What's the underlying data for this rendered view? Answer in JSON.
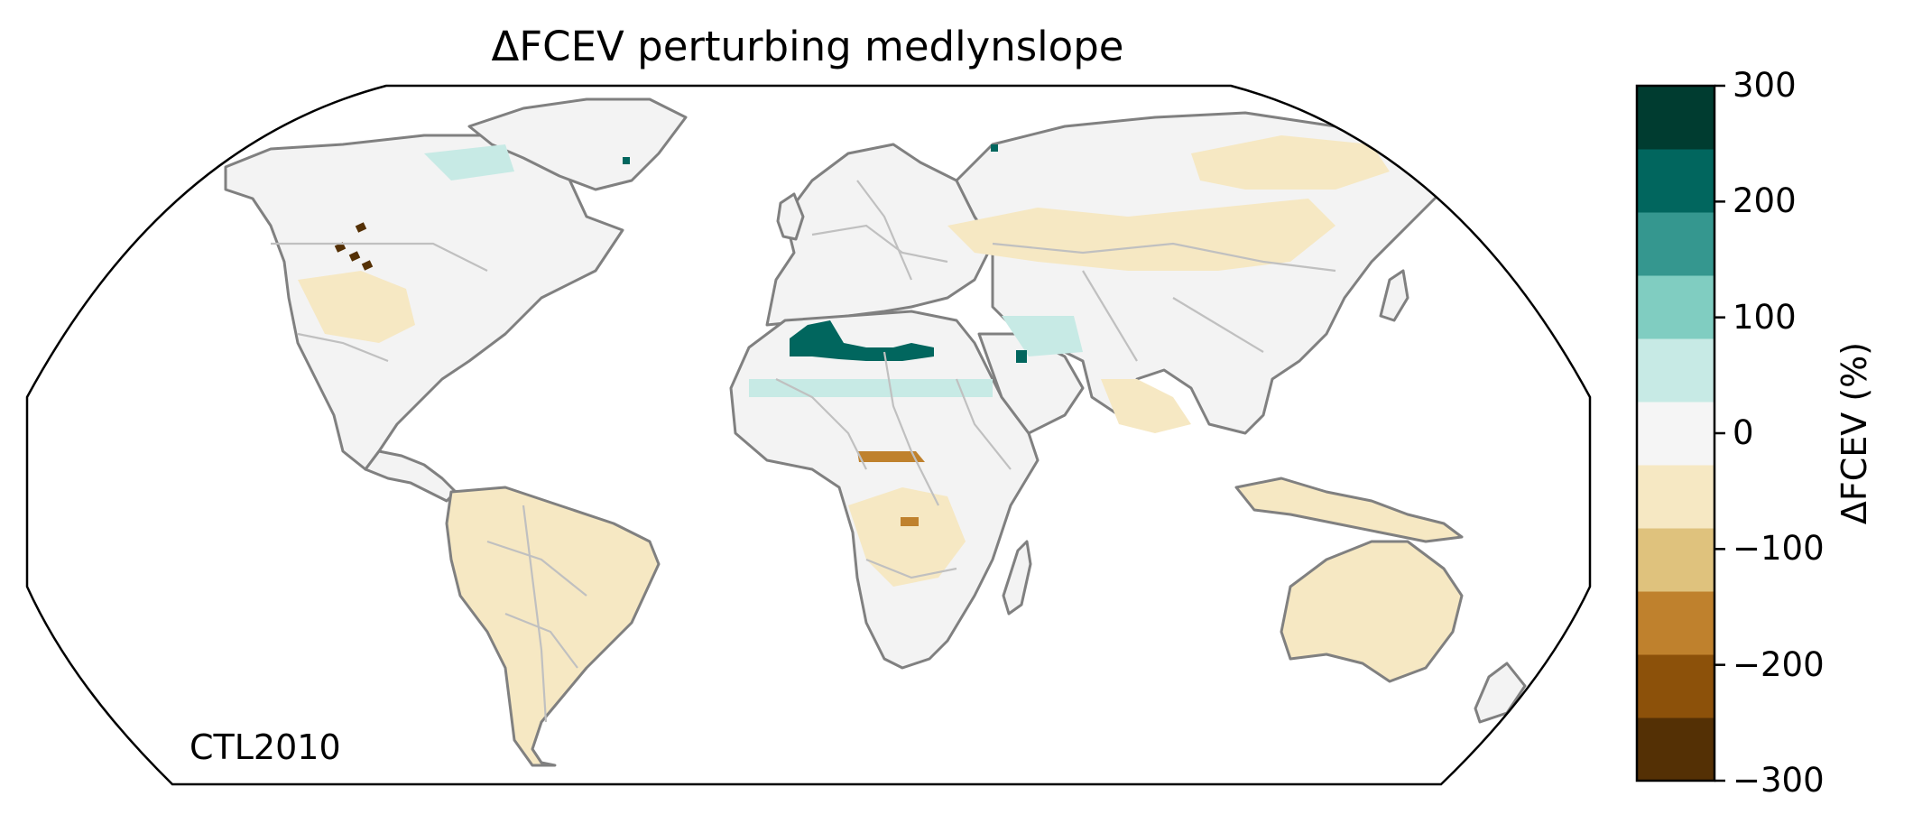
{
  "chart_data": {
    "type": "heatmap",
    "title": "ΔFCEV perturbing medlynslope",
    "annotation": "CTL2010",
    "projection": "robinson",
    "grid": false,
    "colorbar": {
      "label": "ΔFCEV (%)",
      "orientation": "vertical",
      "placement": "right",
      "range": [
        -300,
        300
      ],
      "ticks": [
        -300,
        -200,
        -100,
        0,
        100,
        200,
        300
      ],
      "tick_labels": [
        "−300",
        "−200",
        "−100",
        "0",
        "100",
        "200",
        "300"
      ],
      "bin_edges": [
        -300,
        -250,
        -200,
        -150,
        -100,
        -50,
        50,
        100,
        150,
        200,
        250,
        300
      ],
      "bin_colors": [
        "#543005",
        "#8c510a",
        "#bf812d",
        "#dfc27d",
        "#f6e8c3",
        "#f5f5f5",
        "#c7eae5",
        "#80cdc1",
        "#35978f",
        "#01665e",
        "#003c30"
      ]
    },
    "regions": [
      {
        "name": "Sahara / Maghreb",
        "value": 225
      },
      {
        "name": "Sahel band",
        "value": 75
      },
      {
        "name": "Arabian Gulf",
        "value": 75
      },
      {
        "name": "Congo Basin (north edge)",
        "value": -175
      },
      {
        "name": "Western North America (small cells)",
        "value": -275
      },
      {
        "name": "Amazon / South America",
        "value": -75
      },
      {
        "name": "Central Asia",
        "value": -75
      },
      {
        "name": "Australia",
        "value": -75
      },
      {
        "name": "High-latitude Northern Hemisphere",
        "value": 0
      }
    ]
  },
  "colors": {
    "land_outline": "#808080",
    "borders": "#c0c0c0",
    "frame": "#000000"
  }
}
